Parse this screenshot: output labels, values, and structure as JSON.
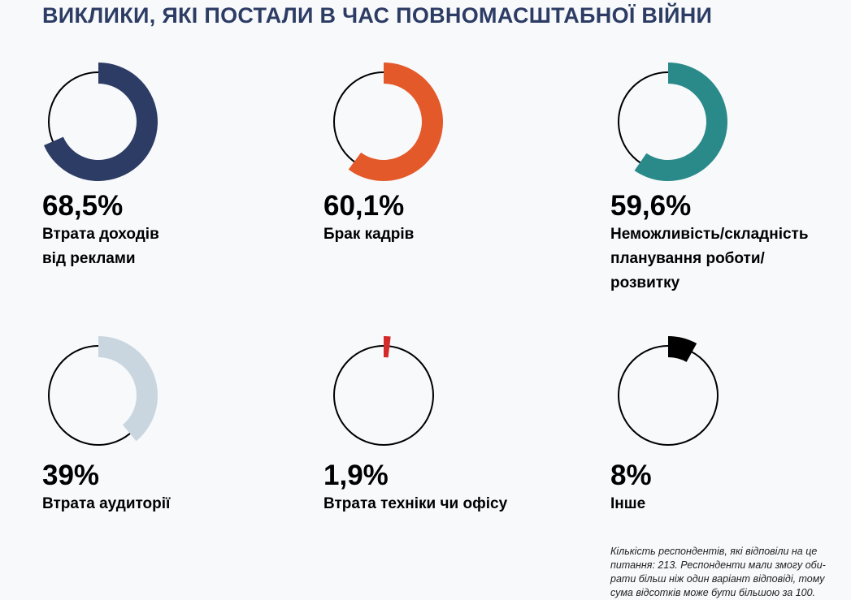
{
  "chart_data": {
    "type": "pie",
    "title": "ВИКЛИКИ, ЯКІ ПОСТАЛИ В ЧАС ПОВНОМАСШТАБНОЇ ВІЙНИ",
    "items": [
      {
        "value": 68.5,
        "value_label": "68,5%",
        "label_lines": [
          "Втрата доходів",
          "від реклами"
        ],
        "color": "#2d3c64"
      },
      {
        "value": 60.1,
        "value_label": "60,1%",
        "label_lines": [
          "Брак кадрів"
        ],
        "color": "#e4592a"
      },
      {
        "value": 59.6,
        "value_label": "59,6%",
        "label_lines": [
          "Неможливість/складність",
          "планування роботи/",
          "розвитку"
        ],
        "color": "#2a8a8a"
      },
      {
        "value": 39,
        "value_label": "39%",
        "label_lines": [
          "Втрата аудиторії"
        ],
        "color": "#c9d6df"
      },
      {
        "value": 1.9,
        "value_label": "1,9%",
        "label_lines": [
          "Втрата техніки чи офісу"
        ],
        "color": "#d42a2a"
      },
      {
        "value": 8,
        "value_label": "8%",
        "label_lines": [
          "Інше"
        ],
        "color": "#000000"
      }
    ],
    "note_lines": [
      "Кількість респондентів, які відповіли на це",
      "питання: 213. Респонденти мали змогу оби-",
      "рати більш ніж один варіант відповіді, тому",
      "сума відсотків може бути більшою за 100."
    ]
  }
}
